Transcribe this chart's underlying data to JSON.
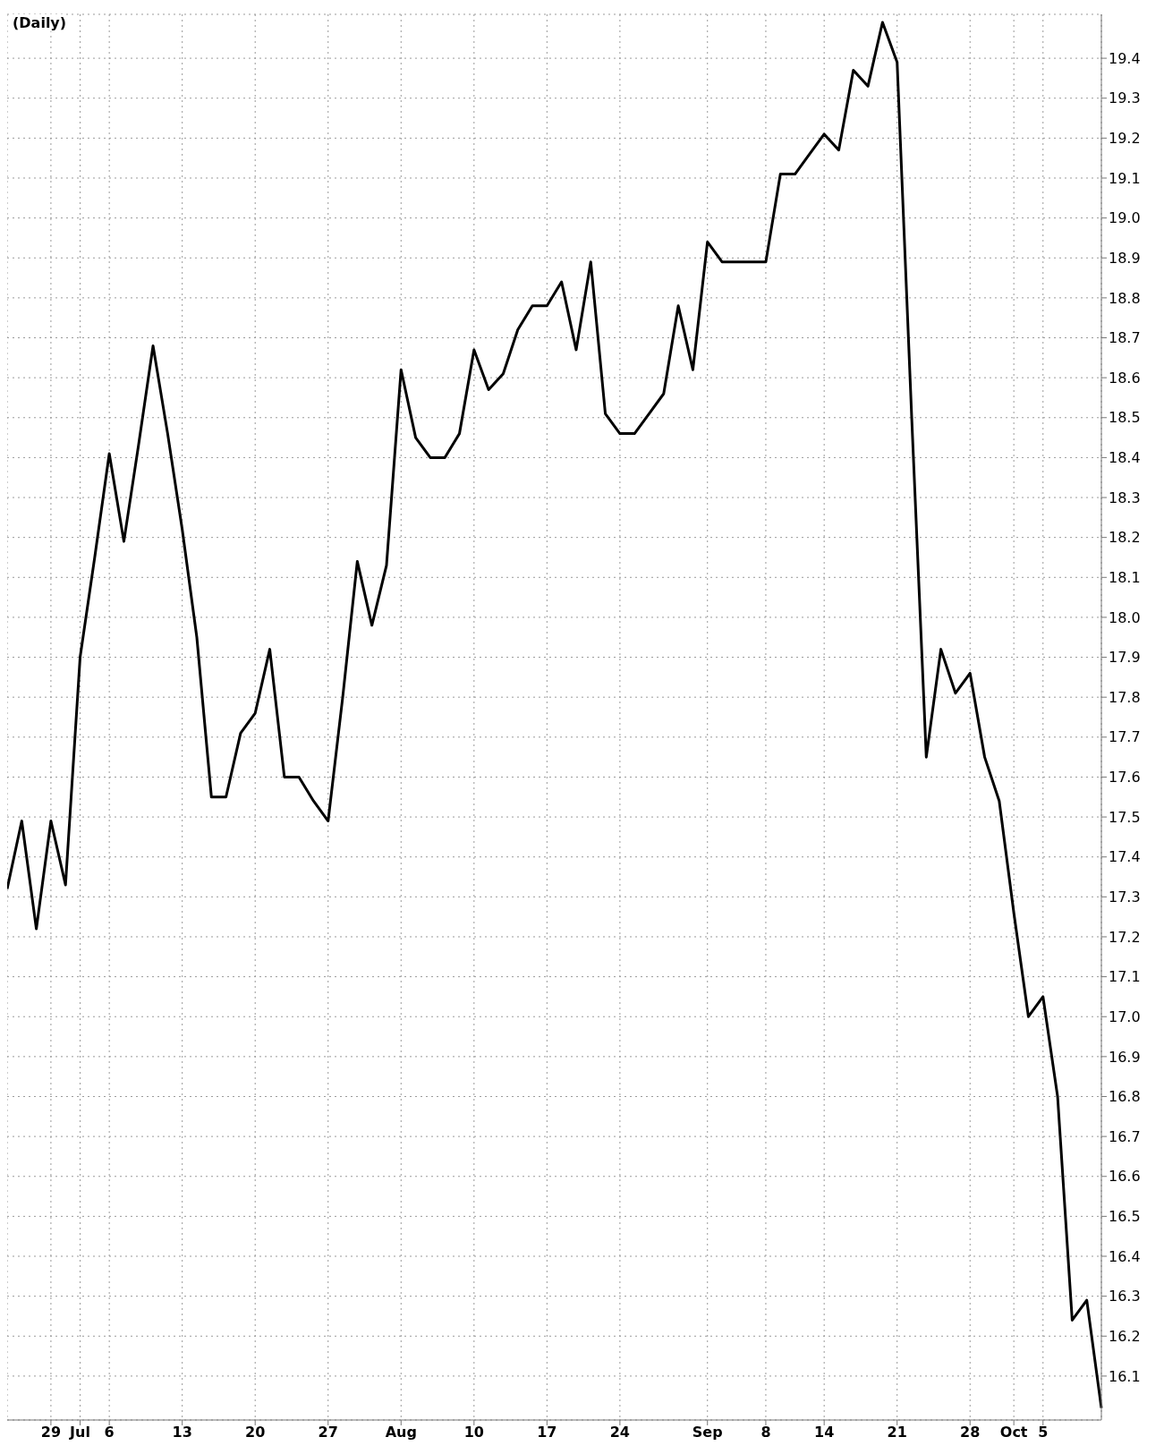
{
  "chart_data": {
    "type": "line",
    "title": "(Daily)",
    "categories": [
      null,
      null,
      null,
      "29",
      null,
      "Jul",
      null,
      "6",
      null,
      null,
      null,
      null,
      "13",
      null,
      null,
      null,
      null,
      "20",
      null,
      null,
      null,
      null,
      "27",
      null,
      null,
      null,
      null,
      "Aug",
      null,
      null,
      null,
      null,
      "10",
      null,
      null,
      null,
      null,
      "17",
      null,
      null,
      null,
      null,
      "24",
      null,
      null,
      null,
      null,
      null,
      "Sep",
      null,
      null,
      null,
      "8",
      null,
      null,
      null,
      "14",
      null,
      null,
      null,
      null,
      "21",
      null,
      null,
      null,
      null,
      "28",
      null,
      null,
      "Oct",
      null,
      "5",
      null,
      null,
      null,
      null
    ],
    "series": [
      {
        "color": "#000000",
        "values": [
          17.32,
          17.49,
          17.22,
          17.49,
          17.33,
          17.9,
          18.15,
          18.41,
          18.19,
          18.43,
          18.68,
          18.46,
          18.22,
          17.95,
          17.55,
          17.55,
          17.71,
          17.76,
          17.92,
          17.6,
          17.6,
          17.54,
          17.49,
          17.8,
          18.14,
          17.98,
          18.13,
          18.62,
          18.45,
          18.4,
          18.4,
          18.46,
          18.67,
          18.57,
          18.61,
          18.72,
          18.78,
          18.78,
          18.84,
          18.67,
          18.89,
          18.51,
          18.46,
          18.46,
          18.51,
          18.56,
          18.78,
          18.62,
          18.94,
          18.89,
          18.89,
          18.89,
          18.89,
          19.11,
          19.11,
          19.16,
          19.21,
          19.17,
          19.37,
          19.33,
          19.49,
          19.39,
          18.5,
          17.65,
          17.92,
          17.81,
          17.86,
          17.65,
          17.54,
          17.26,
          17.0,
          17.05,
          16.8,
          16.24,
          16.29,
          16.02
        ]
      }
    ],
    "ylim": [
      15.99,
      19.51
    ],
    "yticks": [
      16.1,
      16.2,
      16.3,
      16.4,
      16.5,
      16.6,
      16.7,
      16.8,
      16.9,
      {
        "value": 17,
        "label": "17.0"
      },
      17.1,
      17.2,
      17.3,
      17.4,
      17.5,
      17.6,
      17.7,
      17.8,
      17.9,
      {
        "value": 18,
        "label": "18.0"
      },
      18.1,
      18.2,
      18.3,
      18.4,
      18.5,
      18.6,
      18.7,
      18.8,
      18.9,
      {
        "value": 19,
        "label": "19.0"
      },
      19.1,
      19.2,
      19.3,
      19.4
    ],
    "grid": true
  }
}
